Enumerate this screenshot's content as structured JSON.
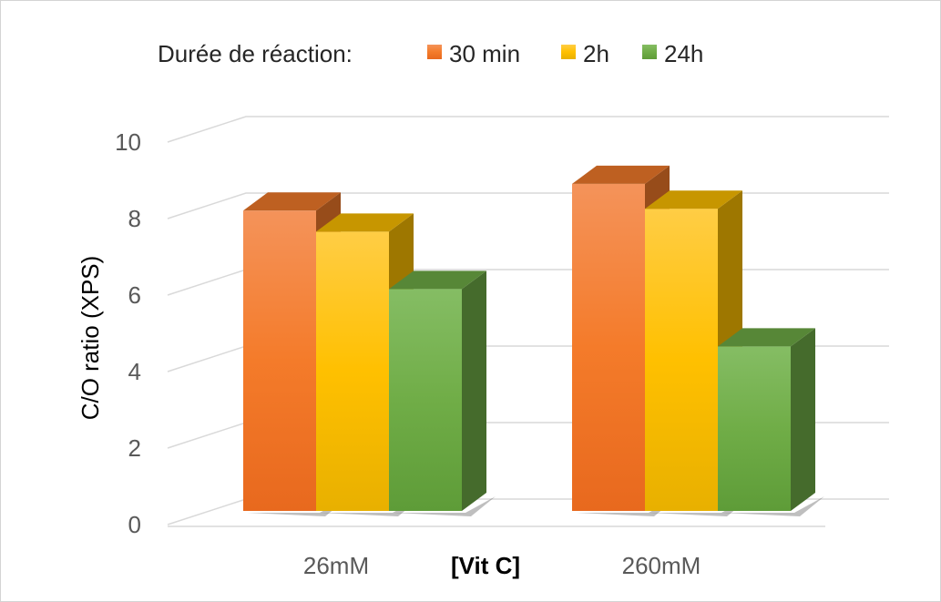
{
  "chart_data": {
    "type": "bar",
    "style": "3d-clustered-column",
    "categories": [
      "26mM",
      "260mM"
    ],
    "series": [
      {
        "name": "30 min",
        "values": [
          7.85,
          8.55
        ],
        "color": "#f47b2a"
      },
      {
        "name": "2h",
        "values": [
          7.3,
          7.9
        ],
        "color": "#ffc000"
      },
      {
        "name": "24h",
        "values": [
          5.8,
          4.3
        ],
        "color": "#70ad47"
      }
    ],
    "legend_title": "Durée de réaction:",
    "legend_position": "top",
    "xlabel": "[Vit C]",
    "ylabel": "C/O ratio (XPS)",
    "ylim": [
      0,
      10
    ],
    "yticks": [
      0,
      2,
      4,
      6,
      8,
      10
    ],
    "grid": true
  }
}
